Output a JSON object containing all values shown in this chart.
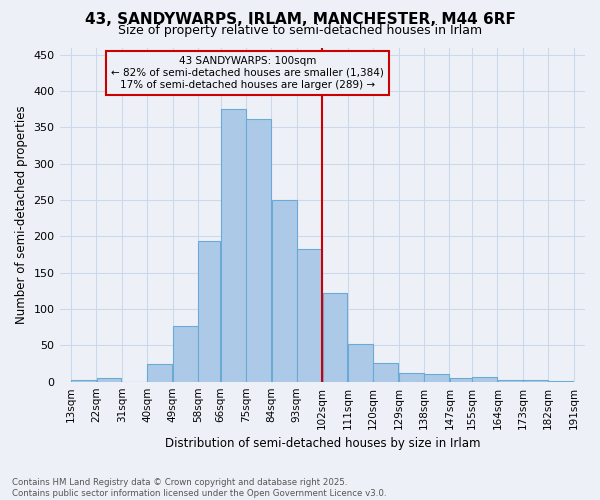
{
  "title": "43, SANDYWARPS, IRLAM, MANCHESTER, M44 6RF",
  "subtitle": "Size of property relative to semi-detached houses in Irlam",
  "xlabel": "Distribution of semi-detached houses by size in Irlam",
  "ylabel": "Number of semi-detached properties",
  "footer": "Contains HM Land Registry data © Crown copyright and database right 2025.\nContains public sector information licensed under the Open Government Licence v3.0.",
  "annotation_title": "43 SANDYWARPS: 100sqm",
  "annotation_line1": "← 82% of semi-detached houses are smaller (1,384)",
  "annotation_line2": "17% of semi-detached houses are larger (289) →",
  "redline_x": 102,
  "bin_edges": [
    13,
    22,
    31,
    40,
    49,
    58,
    66,
    75,
    84,
    93,
    102,
    111,
    120,
    129,
    138,
    147,
    155,
    164,
    173,
    182,
    191
  ],
  "bar_heights": [
    2,
    5,
    0,
    24,
    77,
    193,
    375,
    362,
    250,
    183,
    122,
    52,
    26,
    12,
    10,
    5,
    6,
    2,
    2,
    1
  ],
  "tick_labels": [
    "13sqm",
    "22sqm",
    "31sqm",
    "40sqm",
    "49sqm",
    "58sqm",
    "66sqm",
    "75sqm",
    "84sqm",
    "93sqm",
    "102sqm",
    "111sqm",
    "120sqm",
    "129sqm",
    "138sqm",
    "147sqm",
    "155sqm",
    "164sqm",
    "173sqm",
    "182sqm",
    "191sqm"
  ],
  "bar_color": "#adc9e8",
  "bar_edge_color": "#6aaad4",
  "redline_color": "#cc0000",
  "annotation_box_edgecolor": "#cc0000",
  "annotation_text_color": "#000000",
  "grid_color": "#cdd8ea",
  "background_color": "#edf1f7",
  "ylim": [
    0,
    460
  ],
  "yticks": [
    0,
    50,
    100,
    150,
    200,
    250,
    300,
    350,
    400,
    450
  ]
}
